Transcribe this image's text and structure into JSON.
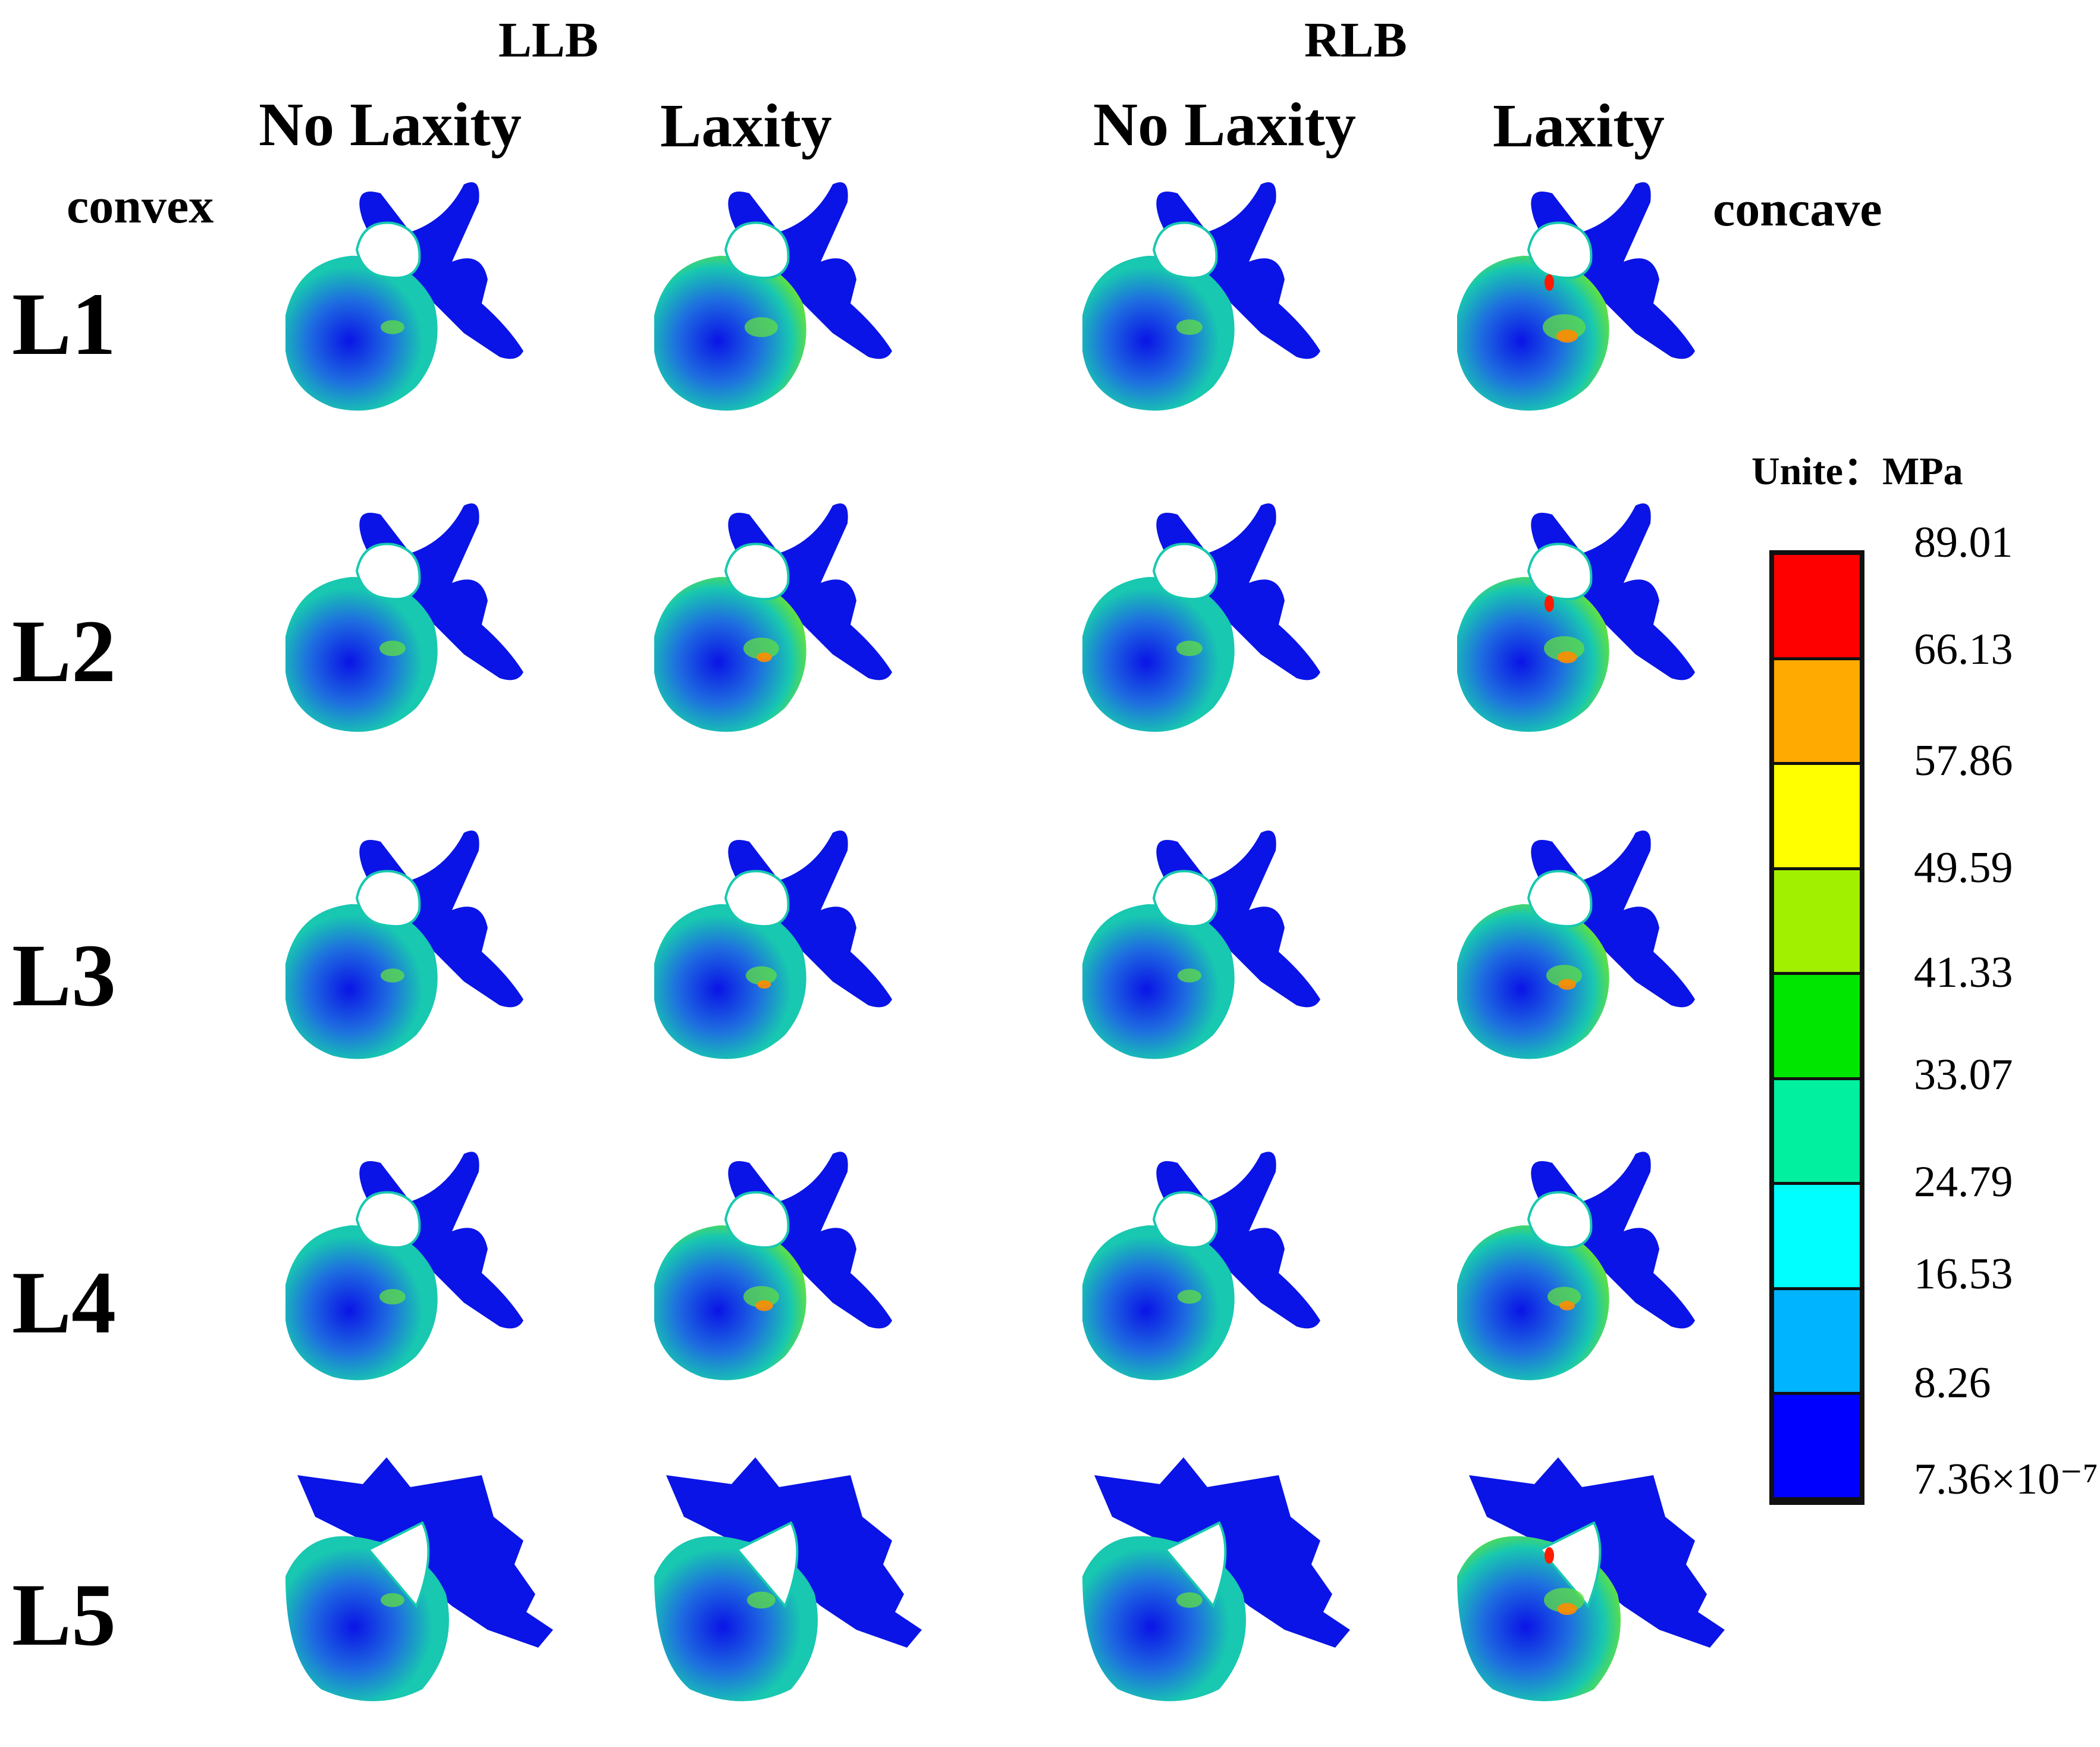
{
  "groups": {
    "llb": "LLB",
    "rlb": "RLB"
  },
  "columns": [
    "No Laxity",
    "Laxity",
    "No Laxity",
    "Laxity"
  ],
  "sides": {
    "left": "convex",
    "right": "concave"
  },
  "rows": [
    "L1",
    "L2",
    "L3",
    "L4",
    "L5"
  ],
  "legend": {
    "unit": "Unite：MPa",
    "ticks": [
      "89.01",
      "66.13",
      "57.86",
      "49.59",
      "41.33",
      "33.07",
      "24.79",
      "16.53",
      "8.26",
      "7.36×10⁻⁷"
    ],
    "colors": [
      "#ff0000",
      "#ffaa00",
      "#ffff00",
      "#a0f000",
      "#00e600",
      "#00f0a0",
      "#00ffff",
      "#00b4ff",
      "#0000ff"
    ]
  },
  "vertebra_colors": {
    "base": "#0a14e6",
    "body": "#1e6ee0",
    "mid": "#18c8b0",
    "high": "#60e040",
    "hot": "#ff8c00",
    "peak": "#ff1a00"
  },
  "panels": [
    {
      "row": "L1",
      "col": 0,
      "hot": [
        0.15,
        0.05
      ]
    },
    {
      "row": "L1",
      "col": 1,
      "hot": [
        0.35,
        0.1
      ]
    },
    {
      "row": "L1",
      "col": 2,
      "hot": [
        0.2,
        0.05
      ]
    },
    {
      "row": "L1",
      "col": 3,
      "hot": [
        0.55,
        0.35
      ]
    },
    {
      "row": "L2",
      "col": 0,
      "hot": [
        0.2,
        0.05
      ]
    },
    {
      "row": "L2",
      "col": 1,
      "hot": [
        0.4,
        0.2
      ]
    },
    {
      "row": "L2",
      "col": 2,
      "hot": [
        0.2,
        0.05
      ]
    },
    {
      "row": "L2",
      "col": 3,
      "hot": [
        0.5,
        0.3
      ]
    },
    {
      "row": "L3",
      "col": 0,
      "hot": [
        0.15,
        0.05
      ]
    },
    {
      "row": "L3",
      "col": 1,
      "hot": [
        0.3,
        0.15
      ]
    },
    {
      "row": "L3",
      "col": 2,
      "hot": [
        0.15,
        0.05
      ]
    },
    {
      "row": "L3",
      "col": 3,
      "hot": [
        0.4,
        0.25
      ]
    },
    {
      "row": "L4",
      "col": 0,
      "hot": [
        0.2,
        0.05
      ]
    },
    {
      "row": "L4",
      "col": 1,
      "hot": [
        0.4,
        0.25
      ]
    },
    {
      "row": "L4",
      "col": 2,
      "hot": [
        0.15,
        0.05
      ]
    },
    {
      "row": "L4",
      "col": 3,
      "hot": [
        0.35,
        0.2
      ]
    },
    {
      "row": "L5",
      "col": 0,
      "hot": [
        0.15,
        0.05
      ]
    },
    {
      "row": "L5",
      "col": 1,
      "hot": [
        0.25,
        0.05
      ]
    },
    {
      "row": "L5",
      "col": 2,
      "hot": [
        0.2,
        0.05
      ]
    },
    {
      "row": "L5",
      "col": 3,
      "hot": [
        0.5,
        0.3
      ]
    }
  ]
}
